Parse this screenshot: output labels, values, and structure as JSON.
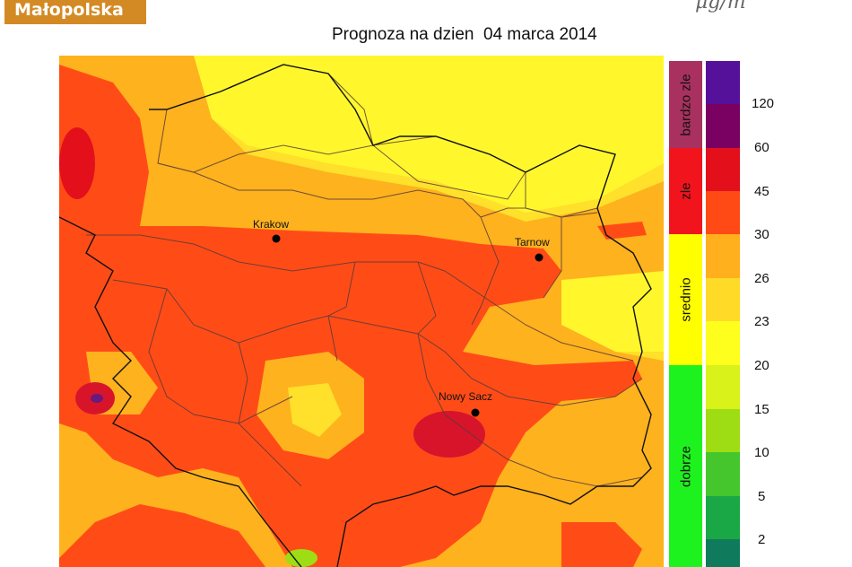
{
  "header": {
    "logo_text": "Małopolska",
    "unit_text": "μg/m",
    "title": "Prognoza na dzien  04 marca 2014"
  },
  "map": {
    "cities": [
      {
        "name": "Krakow"
      },
      {
        "name": "Tarnow"
      },
      {
        "name": "Nowy Sacz"
      }
    ]
  },
  "legend": {
    "categories": [
      {
        "label": "bardzo zle",
        "color": "#a8315f"
      },
      {
        "label": "zle",
        "color": "#f2141c"
      },
      {
        "label": "srednio",
        "color": "#ffff00"
      },
      {
        "label": "dobrze",
        "color": "#1ef21e"
      }
    ],
    "swatches": [
      "#55119a",
      "#7a0061",
      "#e3101c",
      "#ff4a15",
      "#ffb01c",
      "#ffdb28",
      "#ffff1e",
      "#d9f21a",
      "#9edd14",
      "#44c62c",
      "#1aa847",
      "#0f7b5c"
    ],
    "ticks": [
      "120",
      "60",
      "45",
      "30",
      "26",
      "23",
      "20",
      "15",
      "10",
      "5",
      "2"
    ]
  },
  "colors": {
    "very_high": "#6a1a7e",
    "high": "#d8142b",
    "elevated": "#ff4c17",
    "moderate": "#fdb21e",
    "low": "#ffe02a",
    "very_low": "#fff72c"
  }
}
